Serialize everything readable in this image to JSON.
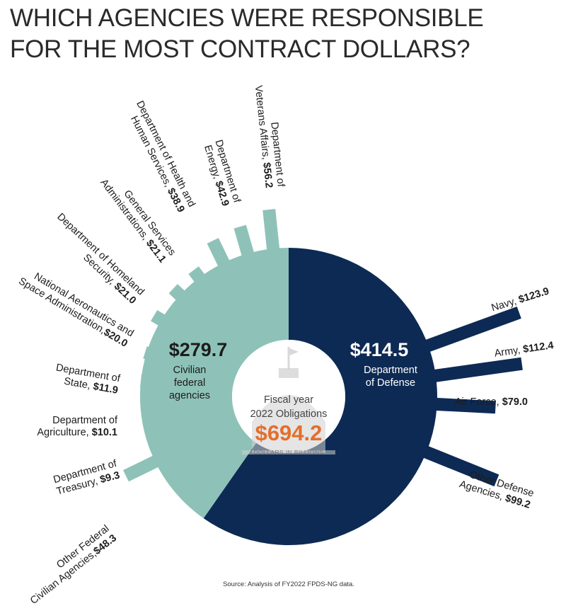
{
  "title_lines": [
    "WHICH AGENCIES WERE RESPONSIBLE",
    "FOR THE MOST CONTRACT DOLLARS?"
  ],
  "colors": {
    "civilian": "#8ec2b8",
    "defense": "#0d2a54",
    "total": "#e36f2d",
    "dome": "#cfcfcf"
  },
  "chart_data": {
    "type": "pie",
    "subtype": "donut-with-radial-bars",
    "center": {
      "line1": "Fiscal year",
      "line2": "2022 Obligations",
      "total_label": "$694.2",
      "total": 694.2,
      "unit_label": "DOLLARS IN BILLIONS"
    },
    "groups": [
      {
        "name_lines": [
          "Civilian",
          "federal",
          "agencies"
        ],
        "value": 279.7,
        "value_label": "$279.7",
        "bars": [
          {
            "label_lines": [
              "Department of",
              "Veterans Affairs,"
            ],
            "value": 56.2,
            "value_label": "$56.2"
          },
          {
            "label_lines": [
              "Department of",
              "Energy,"
            ],
            "value": 42.9,
            "value_label": "$42.9"
          },
          {
            "label_lines": [
              "Department of Health and",
              "Human Services,"
            ],
            "value": 38.9,
            "value_label": "$38.9"
          },
          {
            "label_lines": [
              "General Services",
              "Administrations,"
            ],
            "value": 21.1,
            "value_label": "$21.1"
          },
          {
            "label_lines": [
              "Department of Homeland",
              "Security,"
            ],
            "value": 21.0,
            "value_label": "$21.0"
          },
          {
            "label_lines": [
              "National Aeronautics and",
              "Space Administration,",
              ""
            ],
            "value": 20.0,
            "value_label": "$20.0"
          },
          {
            "label_lines": [
              "Department of",
              "State,"
            ],
            "value": 11.9,
            "value_label": "$11.9"
          },
          {
            "label_lines": [
              "Department of",
              "Agriculture,"
            ],
            "value": 10.1,
            "value_label": "$10.1"
          },
          {
            "label_lines": [
              "Department of",
              "Treasury,"
            ],
            "value": 9.3,
            "value_label": "$9.3"
          },
          {
            "label_lines": [
              "Other Federal",
              "Civilian Agencies,",
              ""
            ],
            "value": 48.3,
            "value_label": "$48.3"
          }
        ]
      },
      {
        "name_lines": [
          "Department",
          "of Defense"
        ],
        "value": 414.5,
        "value_label": "$414.5",
        "bars": [
          {
            "label_lines": [
              "Navy,"
            ],
            "value": 123.9,
            "value_label": "$123.9"
          },
          {
            "label_lines": [
              "Army,"
            ],
            "value": 112.4,
            "value_label": "$112.4"
          },
          {
            "label_lines": [
              "Air Force,"
            ],
            "value": 79.0,
            "value_label": "$79.0"
          },
          {
            "label_lines": [
              "Other Defense",
              "Agencies,"
            ],
            "value": 99.2,
            "value_label": "$99.2"
          }
        ]
      }
    ]
  },
  "source": "Source: Analysis of FY2022 FPDS-NG data."
}
